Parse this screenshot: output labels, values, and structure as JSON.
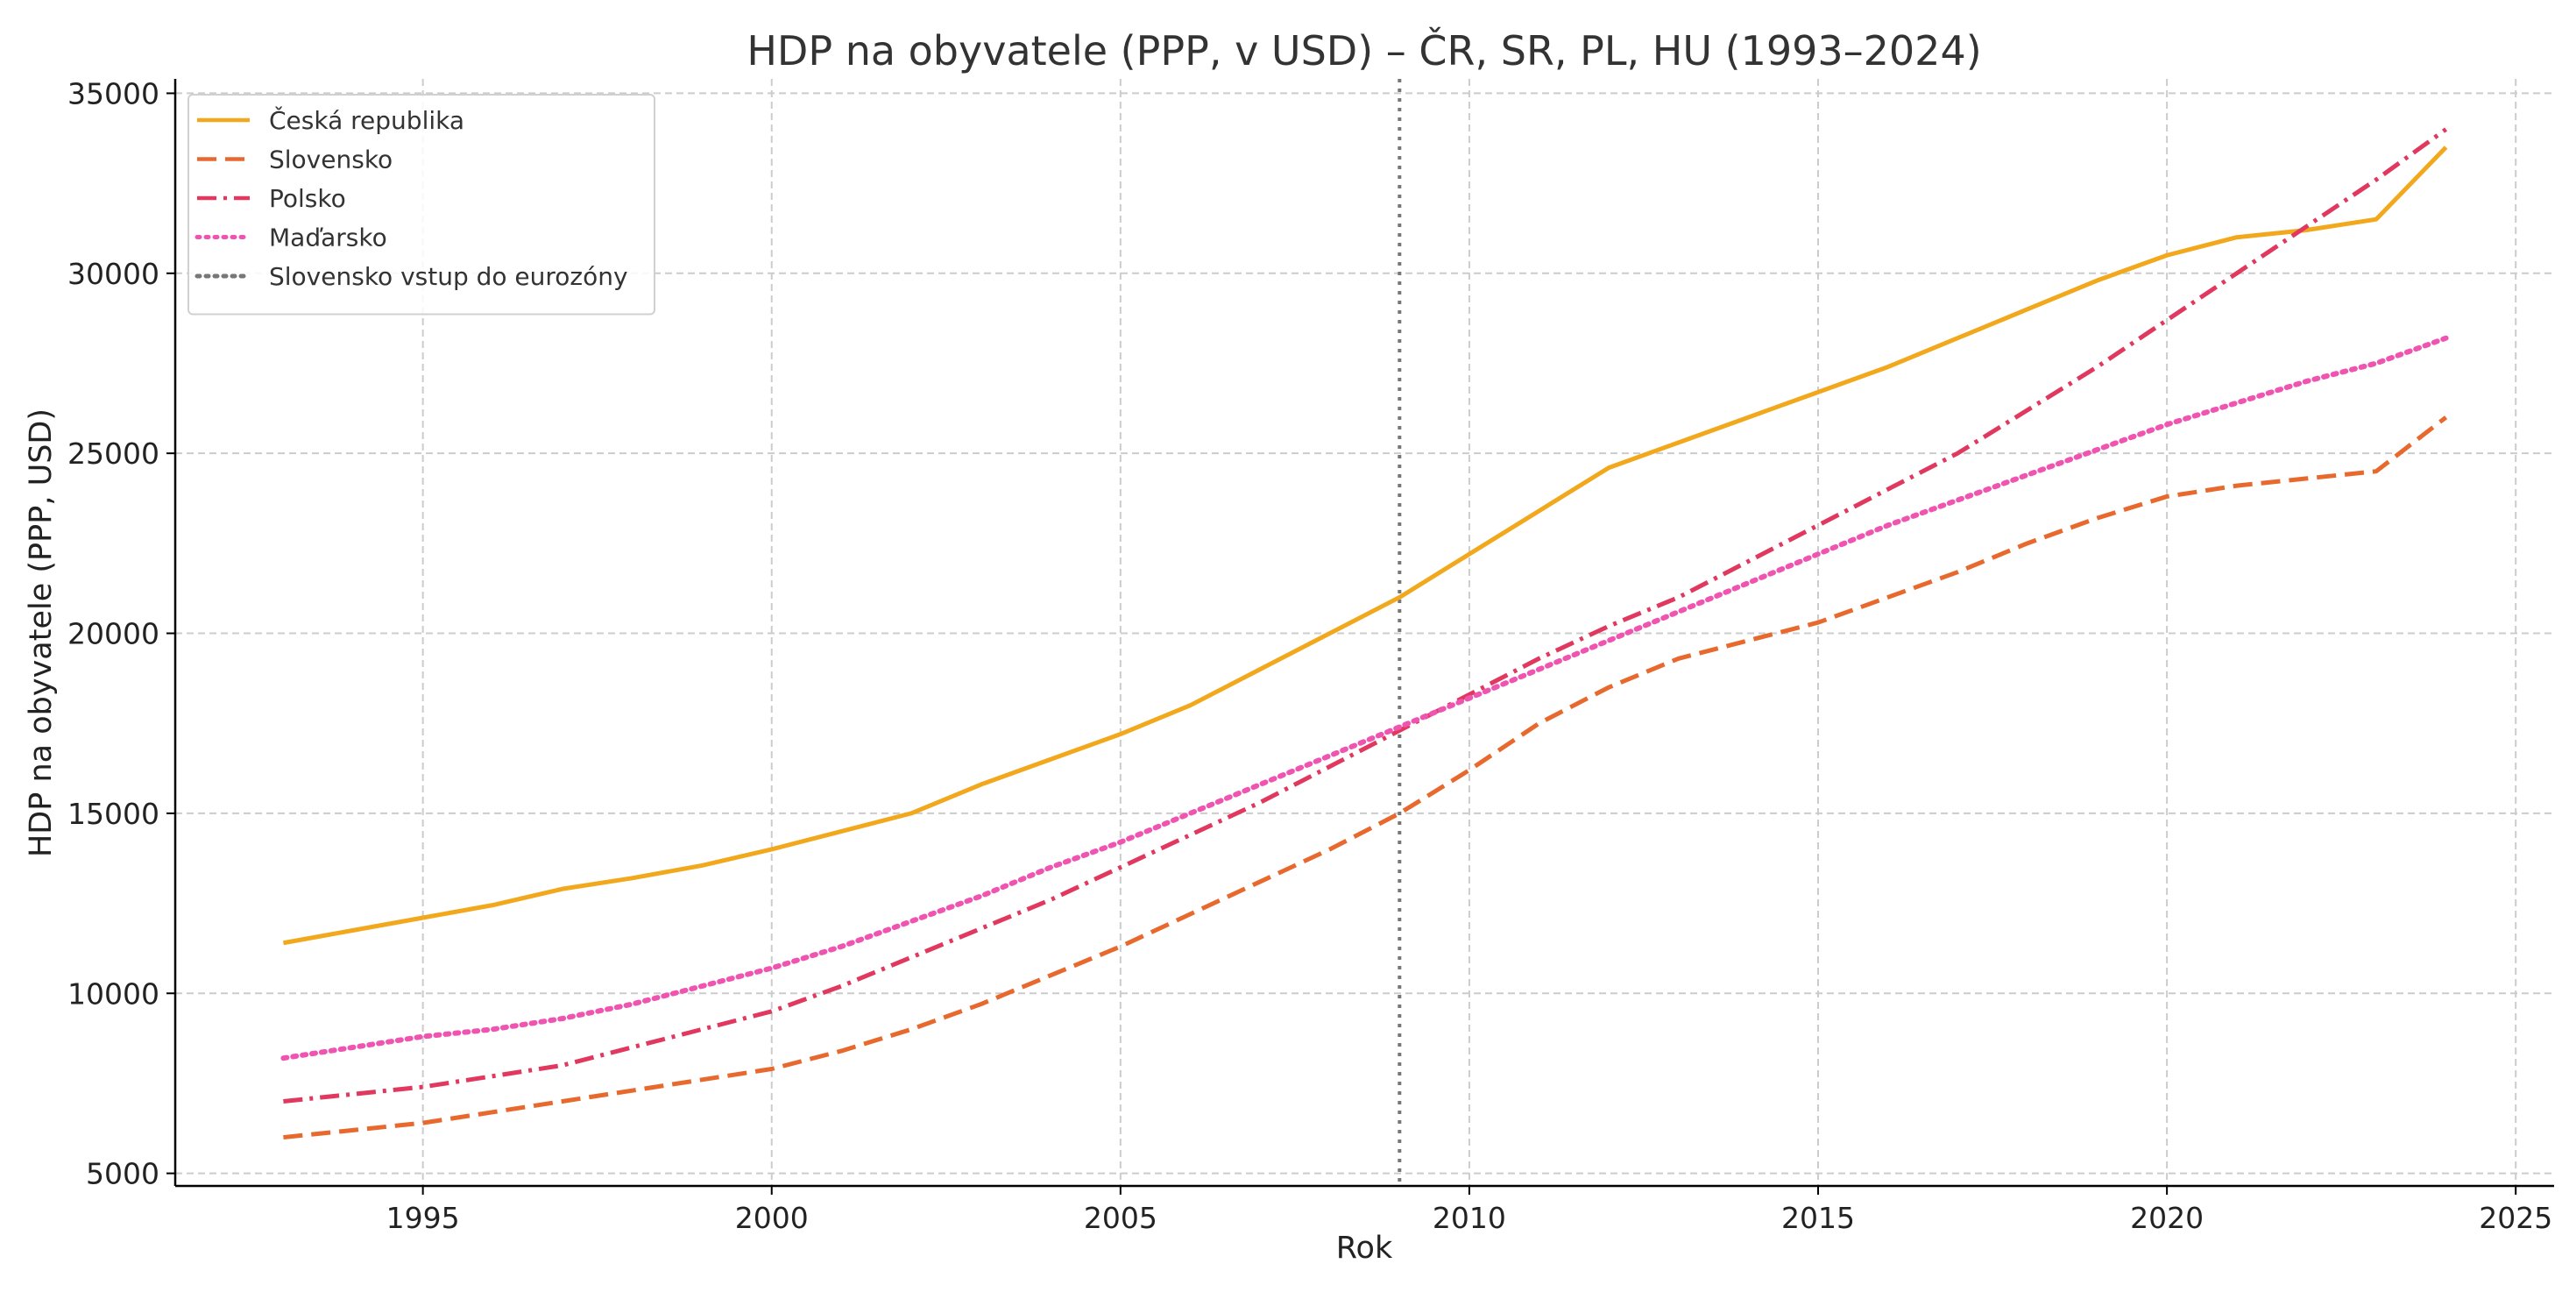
{
  "chart_data": {
    "type": "line",
    "title": "HDP na obyvatele (PPP, v USD) – ČR, SR, PL, HU (1993–2024)",
    "xlabel": "Rok",
    "ylabel": "HDP na obyvatele (PPP, USD)",
    "xlim": [
      1991.45,
      2025.55
    ],
    "ylim": [
      4650,
      35400
    ],
    "xticks": [
      1995,
      2000,
      2005,
      2010,
      2015,
      2020,
      2025
    ],
    "yticks": [
      5000,
      10000,
      15000,
      20000,
      25000,
      30000,
      35000
    ],
    "grid": true,
    "legend_position": "top-left",
    "x": [
      1993,
      1994,
      1995,
      1996,
      1997,
      1998,
      1999,
      2000,
      2001,
      2002,
      2003,
      2004,
      2005,
      2006,
      2007,
      2008,
      2009,
      2010,
      2011,
      2012,
      2013,
      2014,
      2015,
      2016,
      2017,
      2018,
      2019,
      2020,
      2021,
      2022,
      2023,
      2024
    ],
    "series": [
      {
        "name": "Česká republika",
        "color": "#f2a81d",
        "dash": "solid",
        "values": [
          11400,
          11750,
          12100,
          12450,
          12900,
          13200,
          13550,
          14000,
          14500,
          15000,
          15800,
          16500,
          17200,
          18000,
          19000,
          20000,
          21000,
          22200,
          23400,
          24600,
          25300,
          26000,
          26700,
          27400,
          28200,
          29000,
          29800,
          30500,
          31000,
          31200,
          31500,
          33500
        ]
      },
      {
        "name": "Slovensko",
        "color": "#e8692e",
        "dash": "dashed",
        "values": [
          6000,
          6200,
          6400,
          6700,
          7000,
          7300,
          7600,
          7900,
          8400,
          9000,
          9700,
          10500,
          11300,
          12200,
          13100,
          14000,
          15000,
          16200,
          17500,
          18500,
          19300,
          19800,
          20300,
          21000,
          21700,
          22500,
          23200,
          23800,
          24100,
          24300,
          24500,
          26000
        ]
      },
      {
        "name": "Polsko",
        "color": "#e0385e",
        "dash": "dashdot",
        "values": [
          7000,
          7200,
          7400,
          7700,
          8000,
          8500,
          9000,
          9500,
          10200,
          11000,
          11800,
          12600,
          13500,
          14400,
          15300,
          16300,
          17300,
          18300,
          19300,
          20200,
          21000,
          22000,
          23000,
          24000,
          25000,
          26200,
          27400,
          28700,
          30000,
          31300,
          32600,
          34000
        ]
      },
      {
        "name": "Maďarsko",
        "color": "#ef55b0",
        "dash": "dotted",
        "values": [
          8200,
          8500,
          8800,
          9000,
          9300,
          9700,
          10200,
          10700,
          11300,
          12000,
          12700,
          13500,
          14200,
          15000,
          15800,
          16600,
          17400,
          18200,
          19000,
          19800,
          20600,
          21400,
          22200,
          23000,
          23700,
          24400,
          25100,
          25800,
          26400,
          27000,
          27500,
          28200
        ]
      }
    ],
    "annotations": [
      {
        "type": "vline",
        "name": "Slovensko vstup do eurozóny",
        "x": 2009,
        "color": "#777777",
        "dash": "dotted"
      }
    ]
  }
}
